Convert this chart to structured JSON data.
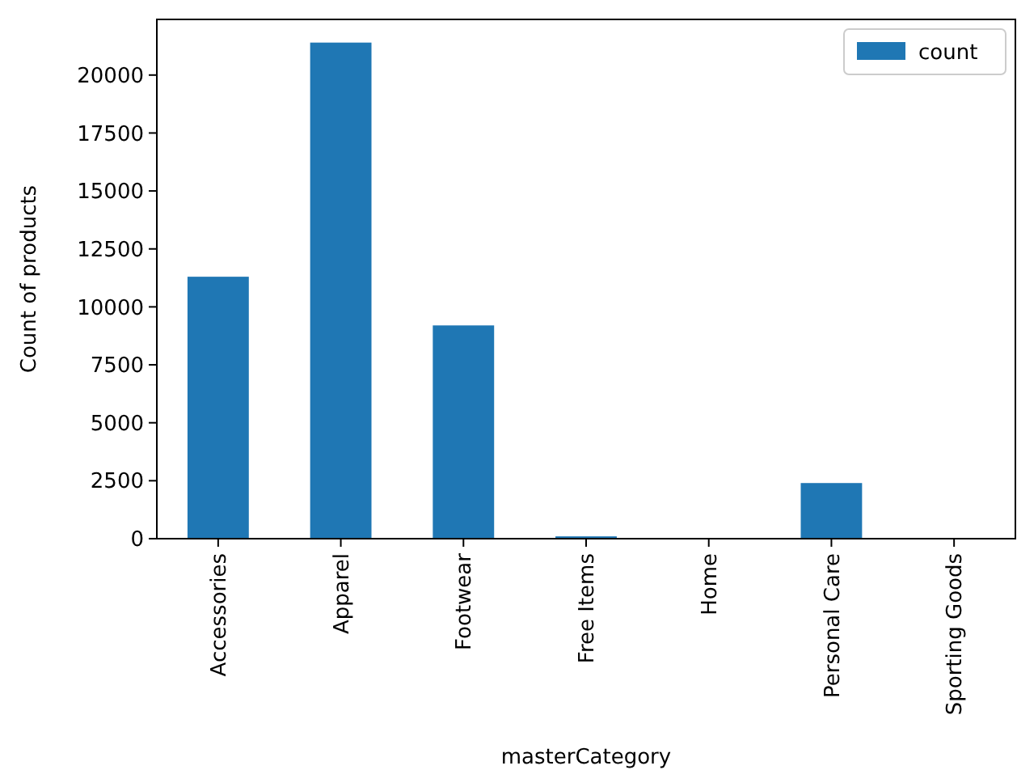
{
  "chart_data": {
    "type": "bar",
    "xlabel": "masterCategory",
    "ylabel": "Count of products",
    "categories": [
      "Accessories",
      "Apparel",
      "Footwear",
      "Free Items",
      "Home",
      "Personal Care",
      "Sporting Goods"
    ],
    "series": [
      {
        "name": "count",
        "color": "#1f77b4",
        "values": [
          11300,
          21400,
          9200,
          100,
          0,
          2400,
          0
        ]
      }
    ],
    "ylim": [
      0,
      22400
    ],
    "yticks": [
      0,
      2500,
      5000,
      7500,
      10000,
      12500,
      15000,
      17500,
      20000
    ],
    "legend": "top right",
    "grid": false
  }
}
